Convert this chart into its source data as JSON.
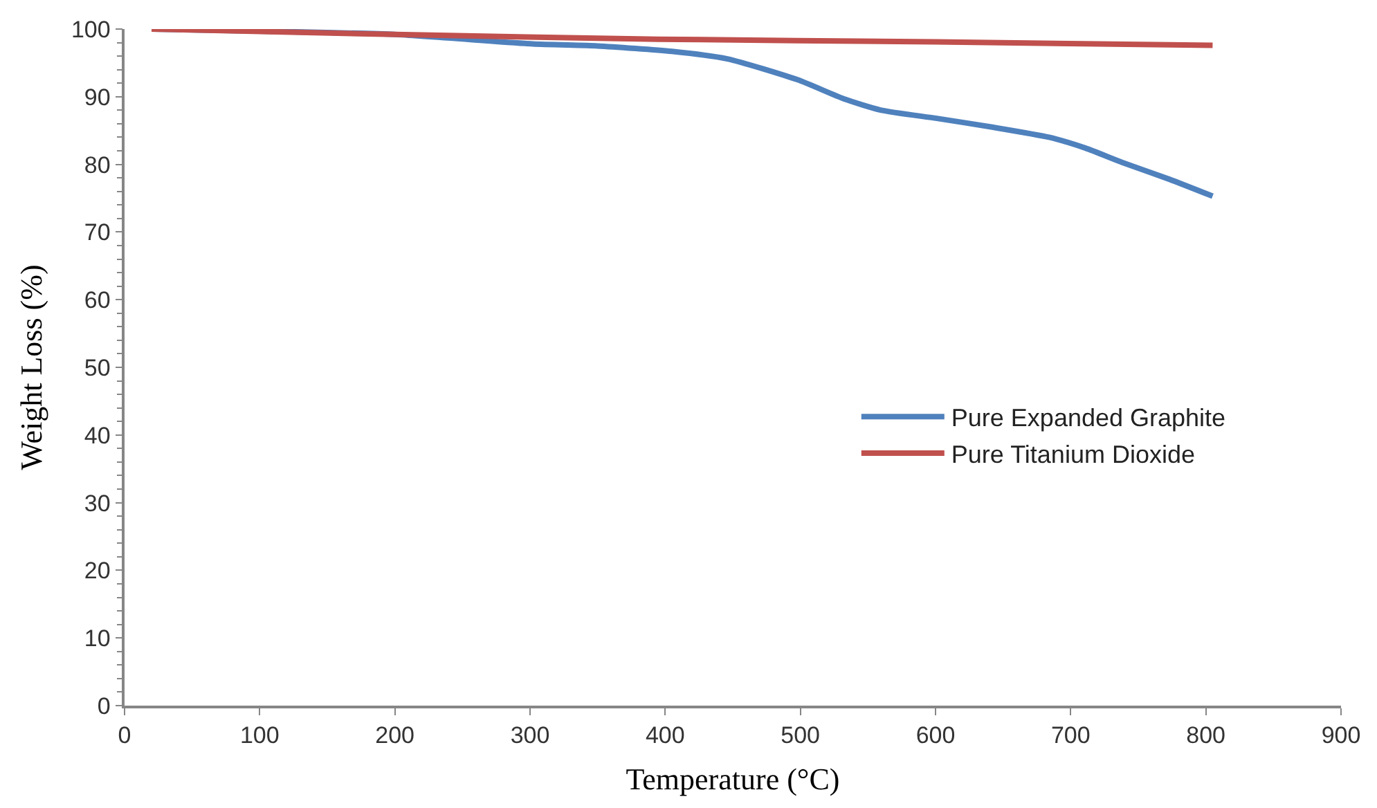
{
  "chart_data": {
    "type": "line",
    "xlabel": "Temperature (°C)",
    "ylabel": "Weight Loss (%)",
    "xlim": [
      0,
      900
    ],
    "xticks": [
      0,
      100,
      200,
      300,
      400,
      500,
      600,
      700,
      800,
      900
    ],
    "ylim": [
      0,
      100
    ],
    "yticks": [
      0,
      10,
      20,
      30,
      40,
      50,
      60,
      70,
      80,
      90,
      100
    ],
    "grid": false,
    "legend": "right",
    "marker": "none",
    "line_style": "solid",
    "series": [
      {
        "name": "Pure Expanded Graphite",
        "color": "#4f81bd",
        "x": [
          20,
          100,
          200,
          302,
          350,
          405,
          446,
          498,
          532,
          560,
          601,
          642,
          684,
          711,
          738,
          773,
          805
        ],
        "values": [
          100,
          99.7,
          99.2,
          97.8,
          97.5,
          96.7,
          95.6,
          92.5,
          89.7,
          88.0,
          86.8,
          85.5,
          84.0,
          82.4,
          80.3,
          77.8,
          75.3
        ]
      },
      {
        "name": "Pure Titanium Dioxide",
        "color": "#c0504d",
        "x": [
          20,
          200,
          395,
          600,
          805
        ],
        "values": [
          100,
          99.2,
          98.5,
          98.1,
          97.6
        ]
      }
    ]
  }
}
